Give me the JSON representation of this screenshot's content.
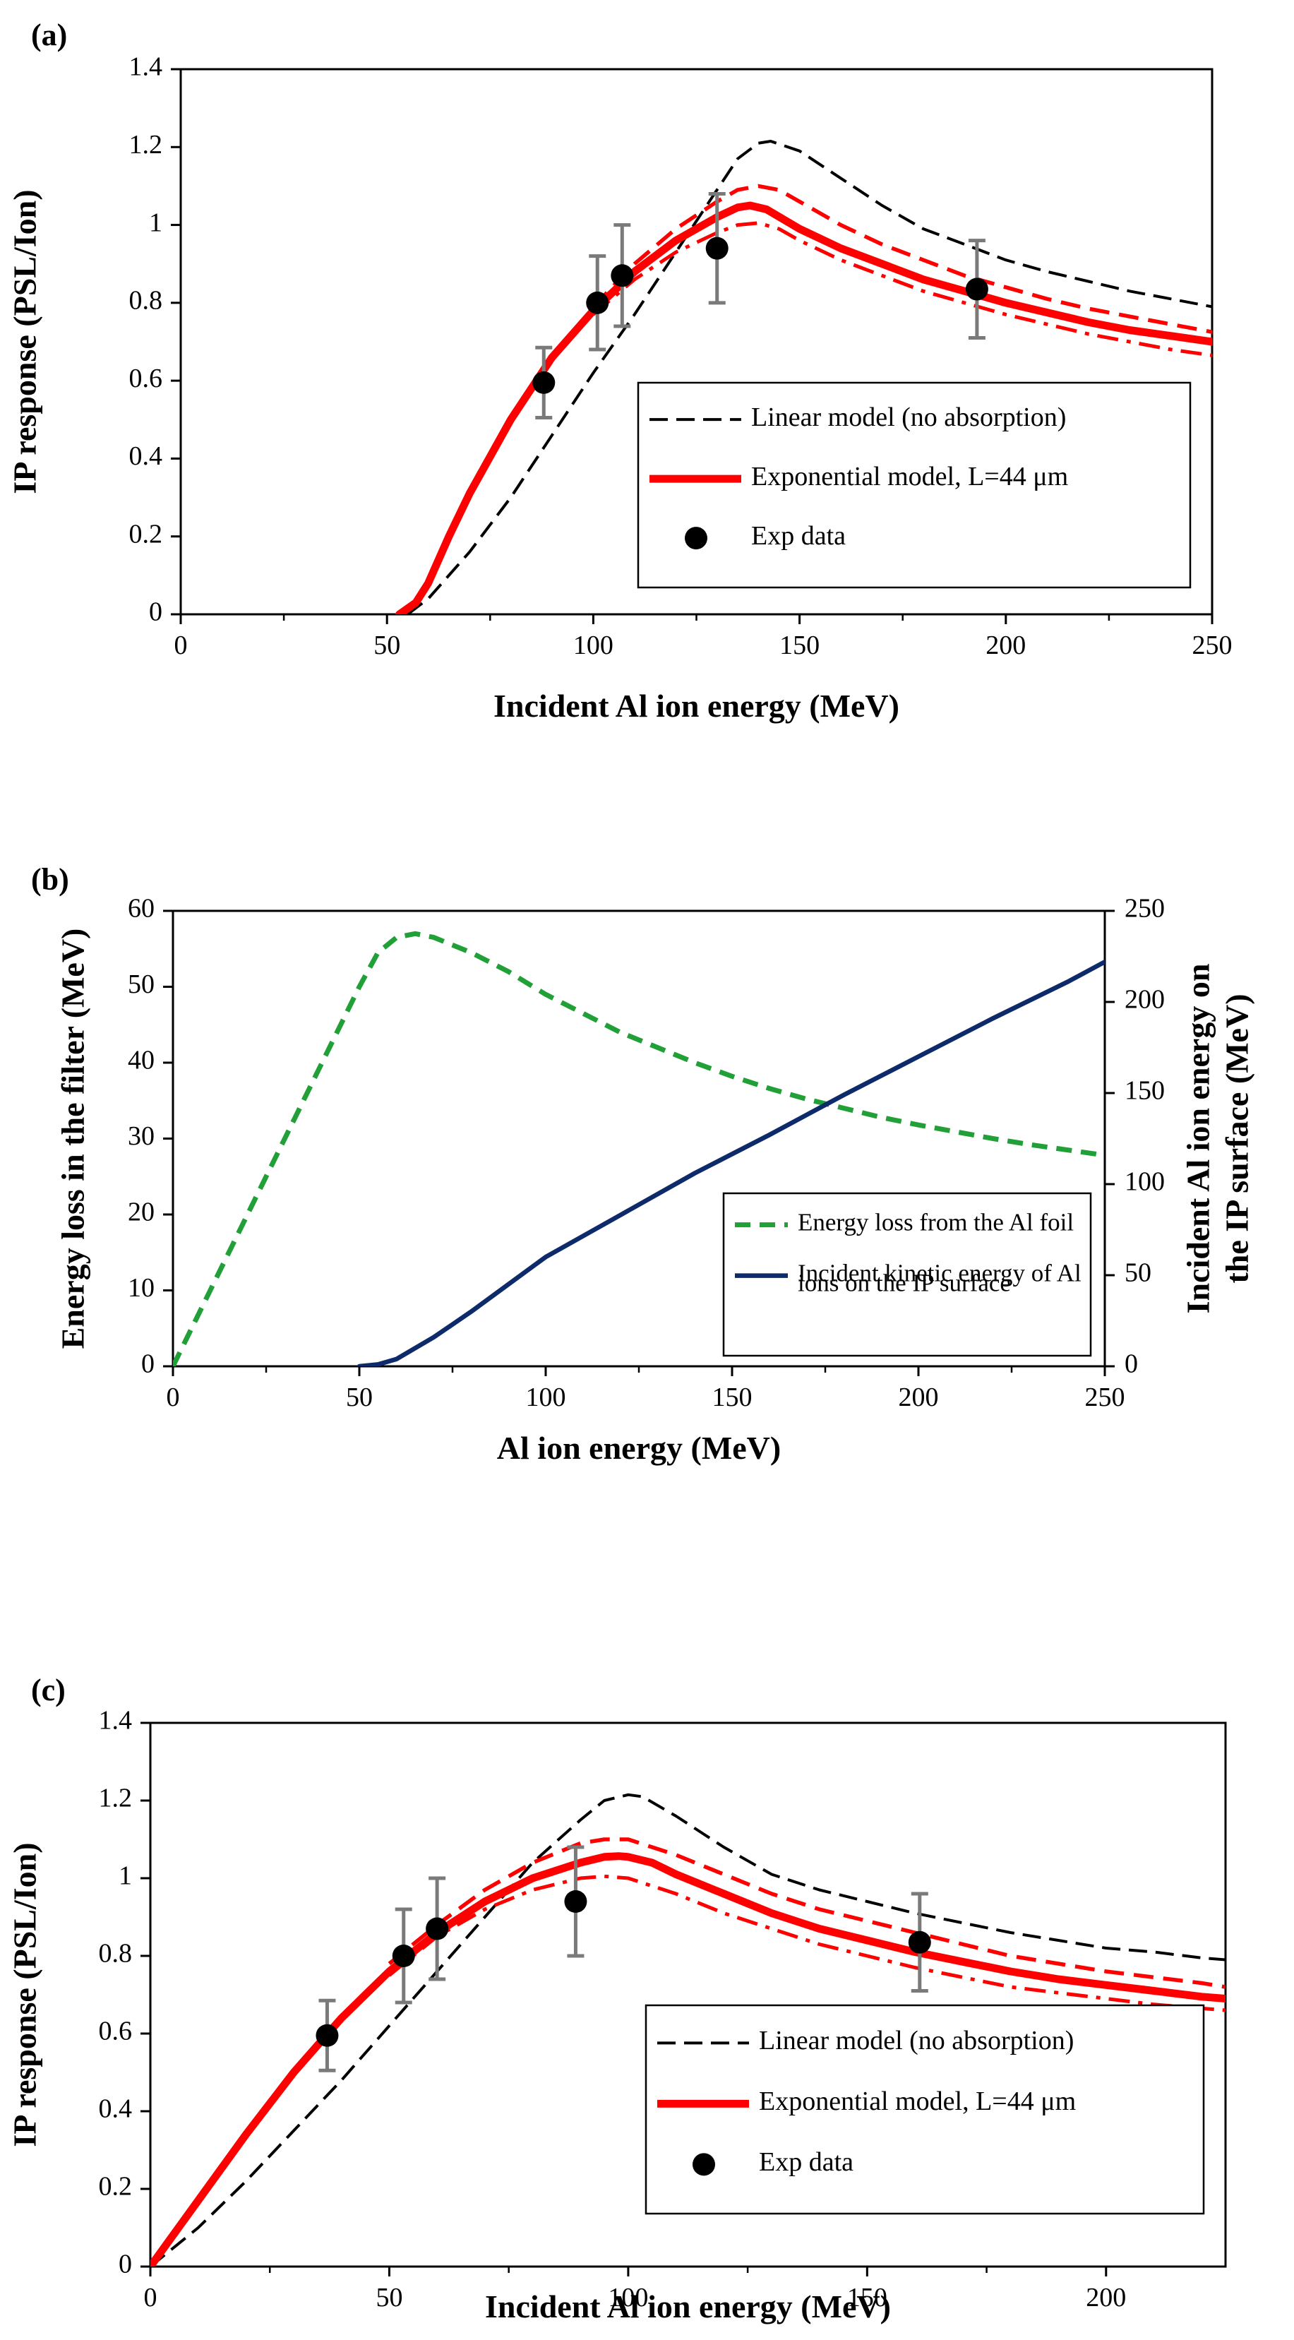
{
  "chart_data": [
    {
      "panel": "(a)",
      "type": "line",
      "xlabel": "Incident Al ion energy (MeV)",
      "ylabel": "IP response (PSL/Ion)",
      "xlim": [
        0,
        250
      ],
      "ylim": [
        0,
        1.4
      ],
      "x_ticks": [
        "0",
        "50",
        "100",
        "150",
        "200",
        "250"
      ],
      "y_ticks": [
        "0",
        "0.2",
        "0.4",
        "0.6",
        "0.8",
        "1",
        "1.2",
        "1.4"
      ],
      "legend_position": "lower-right",
      "legend": [
        "Linear model (no absorption)",
        "Exponential model, L=44 μm",
        "Exp data"
      ],
      "series": [
        {
          "name": "Linear model (no absorption)",
          "style": "black-dashed",
          "x": [
            55,
            60,
            70,
            80,
            90,
            100,
            110,
            120,
            130,
            135,
            140,
            143,
            150,
            160,
            170,
            180,
            190,
            200,
            210,
            220,
            230,
            240,
            250
          ],
          "y": [
            0,
            0.04,
            0.16,
            0.3,
            0.46,
            0.62,
            0.77,
            0.93,
            1.09,
            1.17,
            1.21,
            1.215,
            1.19,
            1.12,
            1.05,
            0.99,
            0.95,
            0.91,
            0.88,
            0.855,
            0.83,
            0.81,
            0.79
          ]
        },
        {
          "name": "Exponential model, L=44 μm",
          "style": "red-solid",
          "x": [
            53,
            57,
            60,
            65,
            70,
            80,
            90,
            100,
            110,
            120,
            130,
            135,
            138,
            142,
            150,
            160,
            170,
            180,
            190,
            200,
            210,
            220,
            230,
            240,
            250
          ],
          "y": [
            0,
            0.03,
            0.08,
            0.2,
            0.31,
            0.5,
            0.66,
            0.78,
            0.88,
            0.96,
            1.02,
            1.045,
            1.05,
            1.04,
            0.99,
            0.94,
            0.9,
            0.86,
            0.83,
            0.8,
            0.775,
            0.75,
            0.73,
            0.715,
            0.7
          ]
        },
        {
          "name": "",
          "style": "red-dashed",
          "x": [
            100,
            110,
            120,
            130,
            135,
            140,
            145,
            150,
            160,
            170,
            180,
            190,
            200,
            210,
            220,
            230,
            240,
            250
          ],
          "y": [
            0.79,
            0.9,
            0.99,
            1.06,
            1.09,
            1.1,
            1.09,
            1.06,
            1.0,
            0.95,
            0.91,
            0.87,
            0.84,
            0.81,
            0.785,
            0.765,
            0.745,
            0.725
          ]
        },
        {
          "name": "",
          "style": "red-dashdot",
          "x": [
            100,
            110,
            120,
            130,
            135,
            140,
            145,
            150,
            160,
            170,
            180,
            190,
            200,
            210,
            220,
            230,
            240,
            250
          ],
          "y": [
            0.77,
            0.86,
            0.93,
            0.98,
            1.0,
            1.005,
            0.99,
            0.96,
            0.91,
            0.87,
            0.83,
            0.8,
            0.77,
            0.745,
            0.72,
            0.7,
            0.68,
            0.665
          ]
        },
        {
          "name": "Exp data",
          "style": "black-dots-errorbars",
          "x": [
            88,
            101,
            107,
            130,
            193
          ],
          "y": [
            0.595,
            0.8,
            0.87,
            0.94,
            0.835
          ],
          "err": [
            0.09,
            0.12,
            0.13,
            0.14,
            0.125
          ]
        }
      ]
    },
    {
      "panel": "(b)",
      "type": "line",
      "xlabel": "Al ion energy (MeV)",
      "ylabel": "Energy loss in the filter (MeV)",
      "y2label_line1": "Incident Al ion energy on",
      "y2label_line2": "the IP surface (MeV)",
      "xlim": [
        0,
        250
      ],
      "ylim": [
        0,
        60
      ],
      "y2lim": [
        0,
        250
      ],
      "x_ticks": [
        "0",
        "50",
        "100",
        "150",
        "200",
        "250"
      ],
      "y_ticks": [
        "0",
        "10",
        "20",
        "30",
        "40",
        "50",
        "60"
      ],
      "y2_ticks": [
        "0",
        "50",
        "100",
        "150",
        "200",
        "250"
      ],
      "legend_position": "lower-right",
      "legend": [
        "Energy loss from the Al foil",
        "Incident kinetic energy of Al",
        "ions on the IP surface"
      ],
      "series": [
        {
          "name": "Energy loss from the Al foil",
          "style": "green-dashed",
          "axis": "left",
          "x": [
            0,
            10,
            20,
            30,
            40,
            50,
            55,
            60,
            65,
            70,
            80,
            90,
            100,
            110,
            120,
            130,
            140,
            150,
            160,
            170,
            180,
            190,
            200,
            210,
            220,
            230,
            240,
            250
          ],
          "y": [
            0,
            10,
            20,
            30,
            40,
            50,
            54.5,
            56.5,
            57,
            56.5,
            54.5,
            52,
            49,
            46.5,
            44,
            42,
            40,
            38.2,
            36.6,
            35.2,
            34,
            32.8,
            31.8,
            30.9,
            30,
            29.2,
            28.5,
            27.8
          ]
        },
        {
          "name": "Incident kinetic energy of Al ions on the IP surface",
          "style": "navy-solid",
          "axis": "right",
          "x": [
            50,
            55,
            60,
            65,
            70,
            80,
            90,
            100,
            120,
            140,
            160,
            180,
            200,
            220,
            240,
            250
          ],
          "y": [
            0,
            1,
            4,
            10,
            16,
            30,
            45,
            60,
            83,
            106,
            127,
            149,
            170,
            191,
            211,
            222
          ]
        }
      ]
    },
    {
      "panel": "(c)",
      "type": "line",
      "xlabel": "Incident Al ion energy (MeV)",
      "ylabel": "IP response (PSL/Ion)",
      "xlim": [
        0,
        225
      ],
      "ylim": [
        0,
        1.4
      ],
      "x_ticks": [
        "0",
        "50",
        "100",
        "150",
        "200"
      ],
      "y_ticks": [
        "0",
        "0.2",
        "0.4",
        "0.6",
        "0.8",
        "1",
        "1.2",
        "1.4"
      ],
      "legend_position": "lower-right",
      "legend": [
        "Linear model (no absorption)",
        "Exponential model, L=44 μm",
        "Exp data"
      ],
      "series": [
        {
          "name": "Linear model (no absorption)",
          "style": "black-dashed",
          "x": [
            0,
            10,
            20,
            30,
            40,
            50,
            60,
            70,
            80,
            90,
            95,
            100,
            103,
            110,
            120,
            130,
            140,
            150,
            160,
            170,
            180,
            190,
            200,
            210,
            220,
            225
          ],
          "y": [
            0,
            0.1,
            0.22,
            0.35,
            0.48,
            0.62,
            0.76,
            0.9,
            1.04,
            1.15,
            1.2,
            1.215,
            1.21,
            1.16,
            1.08,
            1.01,
            0.97,
            0.94,
            0.91,
            0.885,
            0.86,
            0.84,
            0.82,
            0.81,
            0.795,
            0.79
          ]
        },
        {
          "name": "Exponential model, L=44 μm",
          "style": "red-solid",
          "x": [
            0,
            10,
            20,
            30,
            40,
            50,
            60,
            70,
            80,
            90,
            95,
            98,
            100,
            105,
            110,
            120,
            130,
            140,
            150,
            160,
            170,
            180,
            190,
            200,
            210,
            220,
            225
          ],
          "y": [
            0,
            0.17,
            0.34,
            0.5,
            0.64,
            0.76,
            0.86,
            0.94,
            1.0,
            1.04,
            1.055,
            1.057,
            1.055,
            1.04,
            1.01,
            0.96,
            0.91,
            0.87,
            0.84,
            0.81,
            0.785,
            0.76,
            0.74,
            0.725,
            0.71,
            0.695,
            0.69
          ]
        },
        {
          "name": "",
          "style": "red-dashed",
          "x": [
            50,
            60,
            70,
            80,
            90,
            95,
            100,
            105,
            110,
            120,
            130,
            140,
            150,
            160,
            170,
            180,
            190,
            200,
            210,
            220,
            225
          ],
          "y": [
            0.78,
            0.88,
            0.97,
            1.04,
            1.09,
            1.1,
            1.1,
            1.08,
            1.06,
            1.01,
            0.96,
            0.92,
            0.89,
            0.86,
            0.83,
            0.8,
            0.78,
            0.76,
            0.745,
            0.73,
            0.72
          ]
        },
        {
          "name": "",
          "style": "red-dashdot",
          "x": [
            50,
            60,
            70,
            80,
            90,
            95,
            100,
            105,
            110,
            120,
            130,
            140,
            150,
            160,
            170,
            180,
            190,
            200,
            210,
            220,
            225
          ],
          "y": [
            0.75,
            0.85,
            0.92,
            0.97,
            1.0,
            1.005,
            1.0,
            0.98,
            0.96,
            0.91,
            0.87,
            0.83,
            0.8,
            0.77,
            0.745,
            0.72,
            0.705,
            0.69,
            0.675,
            0.665,
            0.66
          ]
        },
        {
          "name": "Exp data",
          "style": "black-dots-errorbars",
          "x": [
            37,
            53,
            60,
            89,
            161
          ],
          "y": [
            0.595,
            0.8,
            0.87,
            0.94,
            0.835
          ],
          "err": [
            0.09,
            0.12,
            0.13,
            0.14,
            0.125
          ]
        }
      ]
    }
  ]
}
